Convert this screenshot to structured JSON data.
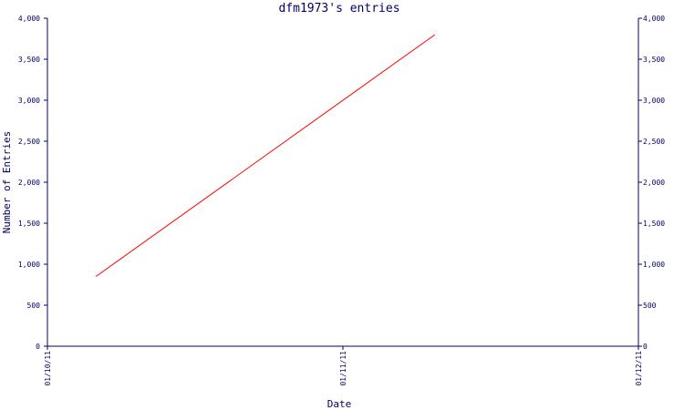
{
  "chart_data": {
    "type": "line",
    "title": "dfm1973's entries",
    "xlabel": "Date",
    "ylabel": "Number of Entries",
    "x_ticks": [
      "01/10/11",
      "01/11/11",
      "01/12/11"
    ],
    "y_ticks": [
      "0",
      "500",
      "1,000",
      "1,500",
      "2,000",
      "2,500",
      "3,000",
      "3,500",
      "4,000"
    ],
    "ylim": [
      0,
      4000
    ],
    "xlim": [
      "2011-10-01",
      "2011-12-01"
    ],
    "grid": false,
    "series": [
      {
        "name": "",
        "color": "#ff0000",
        "points": [
          {
            "x": "2011-10-06",
            "y": 850
          },
          {
            "x": "2011-11-10",
            "y": 3800
          }
        ]
      }
    ]
  },
  "colors": {
    "axis": "#000066",
    "line": "#ff0000",
    "background": "#ffffff"
  }
}
